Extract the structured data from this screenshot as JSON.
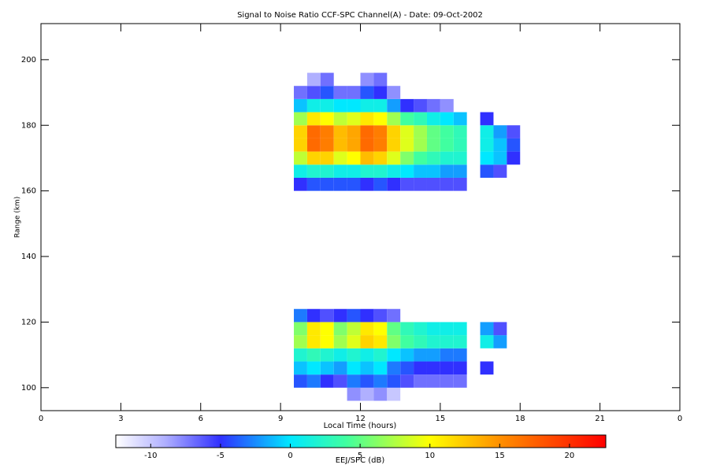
{
  "chart_data": {
    "type": "heatmap",
    "title": "Signal to Noise Ratio CCF-SPC Channel(A) - Date: 09-Oct-2002",
    "xlabel": "Local Time (hours)",
    "ylabel": "Range (km)",
    "xlim": [
      0,
      24
    ],
    "xticks": [
      0,
      3,
      6,
      9,
      12,
      15,
      18,
      21,
      {
        "value": 24,
        "label": "0"
      }
    ],
    "ylim": [
      93,
      211
    ],
    "yticks": [
      100,
      120,
      140,
      160,
      180,
      200
    ],
    "x_edges": [
      9.5,
      10,
      10.5,
      11,
      11.5,
      12,
      12.5,
      13,
      13.5,
      14,
      14.5,
      15,
      15.5,
      16,
      16.5,
      17,
      17.5,
      18
    ],
    "y_edges": [
      96,
      100,
      104,
      108,
      112,
      116,
      120,
      124,
      128,
      132,
      136,
      140,
      144,
      148,
      152,
      156,
      160,
      164,
      168,
      172,
      176,
      180,
      184,
      188,
      192,
      196
    ],
    "z": [
      [
        null,
        null,
        null,
        null,
        -8,
        -9,
        -8,
        -10,
        null,
        null,
        null,
        null,
        null,
        null,
        null,
        null,
        null
      ],
      [
        -4,
        -3,
        -5,
        -6,
        -3,
        -4,
        -3,
        -4,
        -6,
        -7,
        -7,
        -7,
        -7,
        null,
        null,
        null,
        null
      ],
      [
        -1,
        0,
        -1,
        -2,
        0,
        -1,
        0,
        -3,
        -4,
        -5,
        -5,
        -5,
        -5,
        null,
        -5,
        null,
        null
      ],
      [
        2,
        3,
        2,
        1,
        2,
        1,
        2,
        0,
        -1,
        -2,
        -2,
        -3,
        -3,
        null,
        null,
        null,
        null
      ],
      [
        7,
        11,
        10,
        7,
        9,
        12,
        11,
        6,
        4,
        3,
        2,
        2,
        2,
        null,
        1,
        -2,
        null
      ],
      [
        6,
        11,
        10,
        6,
        8,
        11,
        10,
        5,
        3,
        2,
        1,
        1,
        1,
        null,
        -2,
        -6,
        null
      ],
      [
        -3,
        -5,
        -6,
        -5,
        -4,
        -5,
        -6,
        -7,
        null,
        null,
        null,
        null,
        null,
        null,
        null,
        null,
        null
      ],
      [
        null,
        null,
        null,
        null,
        null,
        null,
        null,
        null,
        null,
        null,
        null,
        null,
        null,
        null,
        null,
        null,
        null
      ],
      [
        null,
        null,
        null,
        null,
        null,
        null,
        null,
        null,
        null,
        null,
        null,
        null,
        null,
        null,
        null,
        null,
        null
      ],
      [
        null,
        null,
        null,
        null,
        null,
        null,
        null,
        null,
        null,
        null,
        null,
        null,
        null,
        null,
        null,
        null,
        null
      ],
      [
        null,
        null,
        null,
        null,
        null,
        null,
        null,
        null,
        null,
        null,
        null,
        null,
        null,
        null,
        null,
        null,
        null
      ],
      [
        null,
        null,
        null,
        null,
        null,
        null,
        null,
        null,
        null,
        null,
        null,
        null,
        null,
        null,
        null,
        null,
        null
      ],
      [
        null,
        null,
        null,
        null,
        null,
        null,
        null,
        null,
        null,
        null,
        null,
        null,
        null,
        null,
        null,
        null,
        null
      ],
      [
        null,
        null,
        null,
        null,
        null,
        null,
        null,
        null,
        null,
        null,
        null,
        null,
        null,
        null,
        null,
        null,
        null
      ],
      [
        null,
        null,
        null,
        null,
        null,
        null,
        null,
        null,
        null,
        null,
        null,
        null,
        null,
        null,
        null,
        null,
        null
      ],
      [
        null,
        null,
        null,
        null,
        null,
        null,
        null,
        null,
        null,
        null,
        null,
        null,
        null,
        null,
        null,
        null,
        null
      ],
      [
        -5,
        -4,
        -4,
        -4,
        -4,
        -5,
        -4,
        -5,
        -6,
        -6,
        -6,
        -6,
        -6,
        null,
        null,
        null,
        null
      ],
      [
        1,
        2,
        2,
        1,
        1,
        2,
        2,
        1,
        0,
        -1,
        -1,
        -2,
        -2,
        null,
        -4,
        -6,
        null
      ],
      [
        8,
        12,
        12,
        9,
        10,
        13,
        12,
        9,
        6,
        4,
        3,
        2,
        2,
        null,
        0,
        -1,
        -5
      ],
      [
        12,
        17,
        16,
        13,
        14,
        17,
        16,
        12,
        9,
        7,
        5,
        4,
        3,
        null,
        1,
        -1,
        -4
      ],
      [
        12,
        17,
        16,
        13,
        14,
        17,
        16,
        12,
        9,
        7,
        5,
        4,
        3,
        null,
        1,
        -2,
        -6
      ],
      [
        7,
        11,
        10,
        8,
        9,
        11,
        10,
        7,
        4,
        3,
        1,
        0,
        -1,
        null,
        -5,
        null,
        null
      ],
      [
        -1,
        1,
        1,
        0,
        0,
        1,
        1,
        -2,
        -5,
        -6,
        -7,
        -8,
        null,
        null,
        null,
        null,
        null
      ],
      [
        -7,
        -6,
        -4,
        -7,
        -7,
        -4,
        -5,
        -8,
        null,
        null,
        null,
        null,
        null,
        null,
        null,
        null,
        null
      ],
      [
        null,
        -9,
        -7,
        null,
        null,
        -8,
        -7,
        null,
        null,
        null,
        null,
        null,
        null,
        null,
        null,
        null,
        null
      ]
    ],
    "colorbar_label": "EEJ/SPC (dB)",
    "clim": [
      -12.5,
      22.6
    ],
    "cticks": [
      -10,
      -5,
      0,
      5,
      10,
      15,
      20
    ],
    "colorscale": [
      {
        "value": -12.5,
        "color": "#ffffff"
      },
      {
        "value": -9,
        "color": "#b0b0ff"
      },
      {
        "value": -5,
        "color": "#3030ff"
      },
      {
        "value": 0,
        "color": "#00e8ff"
      },
      {
        "value": 4,
        "color": "#40ffa0"
      },
      {
        "value": 10,
        "color": "#ffff00"
      },
      {
        "value": 15,
        "color": "#ff9000"
      },
      {
        "value": 22.6,
        "color": "#ff0000"
      }
    ]
  }
}
